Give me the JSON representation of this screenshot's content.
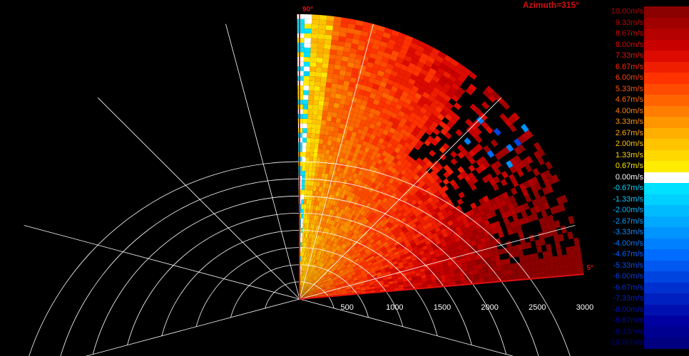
{
  "chart_data": {
    "type": "heatmap",
    "projection": "polar-sector",
    "azimuth_label": "Azimuth=315°",
    "elevation_labels": [
      "90°",
      "5°"
    ],
    "elevation_range_deg": [
      5,
      90
    ],
    "range_ticks": [
      "500",
      "1000",
      "1500",
      "2000",
      "2500",
      "3000"
    ],
    "range_max_m": 3000,
    "grid": true,
    "legend_placement": "right",
    "colorbar": {
      "labels": [
        "10.00m/s",
        "9.33m/s",
        "8.67m/s",
        "8.00m/s",
        "7.33m/s",
        "6.67m/s",
        "6.00m/s",
        "5.33m/s",
        "4.67m/s",
        "4.00m/s",
        "3.33m/s",
        "2.67m/s",
        "2.00m/s",
        "1.33m/s",
        "0.67m/s",
        "0.00m/s",
        "-0.67m/s",
        "-1.33m/s",
        "-2.00m/s",
        "-2.67m/s",
        "-3.33m/s",
        "-4.00m/s",
        "-4.67m/s",
        "-5.33m/s",
        "-6.00m/s",
        "-6.67m/s",
        "-7.33m/s",
        "-8.00m/s",
        "-8.67m/s",
        "-9.33m/s",
        "-10.00m/s"
      ],
      "colors": [
        "#8b0000",
        "#a00000",
        "#b40000",
        "#c80000",
        "#dc0a00",
        "#f01e00",
        "#ff3200",
        "#ff4b00",
        "#ff6400",
        "#ff7d00",
        "#ff9600",
        "#ffaf00",
        "#ffc400",
        "#ffd800",
        "#ffec00",
        "#ffffff",
        "#00e0ff",
        "#00d0ff",
        "#00bcff",
        "#00a8ff",
        "#0094ff",
        "#0080ff",
        "#006cff",
        "#0058f0",
        "#0044e0",
        "#0030d0",
        "#0020c0",
        "#0010b0",
        "#0000a0",
        "#000090",
        "#000080"
      ],
      "label_colors": [
        "#b00000",
        "#c00000",
        "#d00000",
        "#e00000",
        "#f01010",
        "#ff2a00",
        "#ff4000",
        "#ff5500",
        "#ff6a00",
        "#ff8000",
        "#ff9600",
        "#ffac00",
        "#ffc000",
        "#ffd400",
        "#ffe800",
        "#ffffff",
        "#00d8ff",
        "#00c8ff",
        "#00b4ff",
        "#00a0ff",
        "#008cff",
        "#0078ff",
        "#0064ff",
        "#0050f0",
        "#003ce0",
        "#0030d0",
        "#0020c0",
        "#0014b0",
        "#0008a0",
        "#000090",
        "#000080"
      ]
    }
  }
}
